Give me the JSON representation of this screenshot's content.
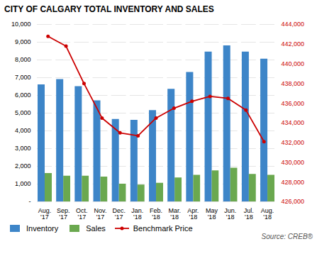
{
  "chart_data": {
    "type": "bar",
    "title": "CITY OF CALGARY TOTAL INVENTORY AND SALES",
    "categories": [
      "Aug.\n'17",
      "Sep.\n'17",
      "Oct.\n'17",
      "Nov.\n'17",
      "Dec.\n'17",
      "Jan.\n'18",
      "Feb.\n'18",
      "Mar.\n'18",
      "Apr.\n'18",
      "May\n'18",
      "Jun.\n'18",
      "Jul.\n'18",
      "Aug.\n'18"
    ],
    "series": [
      {
        "name": "Inventory",
        "color": "#3D85C8",
        "values": [
          6600,
          6900,
          6500,
          5700,
          4650,
          4600,
          5150,
          6350,
          7300,
          8450,
          8800,
          8450,
          8050
        ]
      },
      {
        "name": "Sales",
        "color": "#6AA84F",
        "values": [
          1600,
          1450,
          1450,
          1400,
          1000,
          950,
          1050,
          1350,
          1500,
          1750,
          1900,
          1550,
          1500
        ]
      },
      {
        "name": "Benchmark Price",
        "color": "#CC0000",
        "type": "line",
        "marker": "circle",
        "axis": "y2",
        "values": [
          442800,
          441800,
          438000,
          434500,
          433000,
          432700,
          434500,
          435500,
          436200,
          436700,
          436500,
          435300,
          432100
        ]
      }
    ],
    "ylim": [
      0,
      10000
    ],
    "yticks": [
      {
        "value": 0,
        "label": "-"
      },
      {
        "value": 1000,
        "label": "1,000"
      },
      {
        "value": 2000,
        "label": "2,000"
      },
      {
        "value": 3000,
        "label": "3,000"
      },
      {
        "value": 4000,
        "label": "4,000"
      },
      {
        "value": 5000,
        "label": "5,000"
      },
      {
        "value": 6000,
        "label": "6,000"
      },
      {
        "value": 7000,
        "label": "7,000"
      },
      {
        "value": 8000,
        "label": "8,000"
      },
      {
        "value": 9000,
        "label": "9,000"
      },
      {
        "value": 10000,
        "label": "10,000"
      }
    ],
    "y2lim": [
      426000,
      444000
    ],
    "y2ticks": [
      {
        "value": 426000,
        "label": "426,000"
      },
      {
        "value": 428000,
        "label": "428,000"
      },
      {
        "value": 430000,
        "label": "430,000"
      },
      {
        "value": 432000,
        "label": "432,000"
      },
      {
        "value": 434000,
        "label": "434,000"
      },
      {
        "value": 436000,
        "label": "436,000"
      },
      {
        "value": 438000,
        "label": "438,000"
      },
      {
        "value": 440000,
        "label": "440,000"
      },
      {
        "value": 442000,
        "label": "442,000"
      },
      {
        "value": 444000,
        "label": "444,000"
      }
    ],
    "grid": true,
    "legend": "lower left",
    "annotations": [
      "Source: CREB®"
    ]
  }
}
